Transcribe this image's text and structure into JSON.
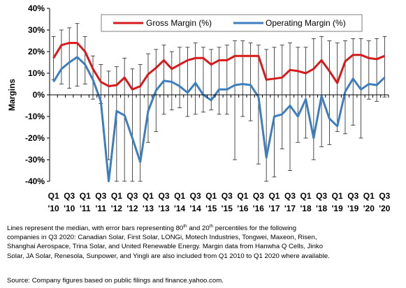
{
  "chart_data": {
    "type": "line",
    "ylabel": "Margins",
    "ylim": [
      -40,
      40
    ],
    "yticks": [
      -40,
      -30,
      -20,
      -10,
      0,
      10,
      20,
      30,
      40
    ],
    "ytick_suffix": "%",
    "grid": false,
    "legend_position": "top",
    "x": [
      "Q1 2010",
      "Q2 2010",
      "Q3 2010",
      "Q4 2010",
      "Q1 2011",
      "Q2 2011",
      "Q3 2011",
      "Q4 2011",
      "Q1 2012",
      "Q2 2012",
      "Q3 2012",
      "Q4 2012",
      "Q1 2013",
      "Q2 2013",
      "Q3 2013",
      "Q4 2013",
      "Q1 2014",
      "Q2 2014",
      "Q3 2014",
      "Q4 2014",
      "Q1 2015",
      "Q2 2015",
      "Q3 2015",
      "Q4 2015",
      "Q1 2016",
      "Q2 2016",
      "Q3 2016",
      "Q4 2016",
      "Q1 2017",
      "Q2 2017",
      "Q3 2017",
      "Q4 2017",
      "Q1 2018",
      "Q2 2018",
      "Q3 2018",
      "Q4 2018",
      "Q1 2019",
      "Q2 2019",
      "Q3 2019",
      "Q4 2019",
      "Q1 2020",
      "Q2 2020",
      "Q3 2020"
    ],
    "x_tick_labels": [
      {
        "q": "Q1",
        "y": "'10"
      },
      {
        "q": "Q3",
        "y": "'10"
      },
      {
        "q": "Q1",
        "y": "'11"
      },
      {
        "q": "Q3",
        "y": "'11"
      },
      {
        "q": "Q1",
        "y": "'12"
      },
      {
        "q": "Q3",
        "y": "'12"
      },
      {
        "q": "Q1",
        "y": "'13"
      },
      {
        "q": "Q3",
        "y": "'13"
      },
      {
        "q": "Q1",
        "y": "'14"
      },
      {
        "q": "Q3",
        "y": "'14"
      },
      {
        "q": "Q1",
        "y": "'15"
      },
      {
        "q": "Q3",
        "y": "'15"
      },
      {
        "q": "Q1",
        "y": "'16"
      },
      {
        "q": "Q3",
        "y": "'16"
      },
      {
        "q": "Q1",
        "y": "'17"
      },
      {
        "q": "Q3",
        "y": "'17"
      },
      {
        "q": "Q1",
        "y": "'18"
      },
      {
        "q": "Q3",
        "y": "'18"
      },
      {
        "q": "Q1",
        "y": "'19"
      },
      {
        "q": "Q3",
        "y": "'19"
      },
      {
        "q": "Q1",
        "y": "'20"
      },
      {
        "q": "Q3",
        "y": "'20"
      }
    ],
    "series": [
      {
        "name": "Gross Margin (%)",
        "color": "#d7191c",
        "values": [
          17,
          23,
          24,
          24,
          20,
          12,
          6,
          4,
          4.5,
          8,
          2.5,
          4,
          9.5,
          12.5,
          16,
          12,
          14,
          16,
          17,
          17,
          14,
          16,
          16,
          18,
          18,
          18,
          18,
          7,
          7.5,
          8,
          11.5,
          11,
          10,
          12,
          16,
          11,
          5.5,
          15.5,
          18.5,
          18.5,
          17,
          16.5,
          18
        ],
        "upper": [
          27,
          30,
          31,
          33,
          27,
          18,
          14,
          11,
          13,
          17,
          12,
          14,
          19,
          21,
          23,
          20,
          22,
          22,
          24,
          22,
          21,
          22,
          23,
          25,
          25,
          24,
          23,
          21,
          22,
          23,
          24,
          22,
          22,
          26,
          27,
          25,
          24,
          25,
          26,
          26,
          25,
          26,
          27
        ],
        "lower": [
          7,
          5,
          3,
          4,
          5,
          -2,
          -4,
          -30,
          -40,
          -40,
          -40,
          -40,
          -22,
          -17,
          -9,
          -7,
          -6,
          -10,
          -9,
          -8,
          -7,
          -9,
          -9,
          -30,
          -10,
          -12,
          -32,
          -40,
          -38,
          -25,
          -35,
          -22,
          -20,
          -30,
          -24,
          -23,
          -17,
          -18,
          -14,
          -20,
          -2,
          -3,
          -1
        ]
      },
      {
        "name": "Operating Margin (%)",
        "color": "#3d7ebf",
        "values": [
          6,
          12,
          15,
          17.5,
          14,
          7,
          -3,
          -40,
          -7.5,
          -9.5,
          -20,
          -31,
          -7.5,
          2,
          6.5,
          6,
          4,
          1,
          5.5,
          0,
          -2.5,
          2.5,
          2.5,
          4.5,
          5,
          4.5,
          -1,
          -29,
          -10,
          -9,
          -5,
          -10,
          -2,
          -20,
          -0.5,
          -11,
          -14.5,
          1.5,
          7.5,
          2.5,
          5,
          4.5,
          8
        ]
      }
    ]
  },
  "footnote": {
    "line1_pre": "Lines represent the median, with error bars representing 80",
    "line1_sup1": "th",
    "line1_mid": " and 20",
    "line1_sup2": "th",
    "line1_post": " percentiles for the following",
    "line2": "companies in Q3 2020: Canadian Solar, First Solar, LONGi, Motech Industries, Tongwei, Maxeon, Risen,",
    "line3": "Shanghai Aerospace, Trina Solar, and United Renewable Energy. Margin data from Hanwha Q Cells, Jinko",
    "line4": "Solar, JA Solar, Renesola, Sunpower, and Yingli are also included from Q1 2010 to Q1 2020 where available."
  },
  "source": "Source: Company figures based on public filings and finance.yahoo.com."
}
